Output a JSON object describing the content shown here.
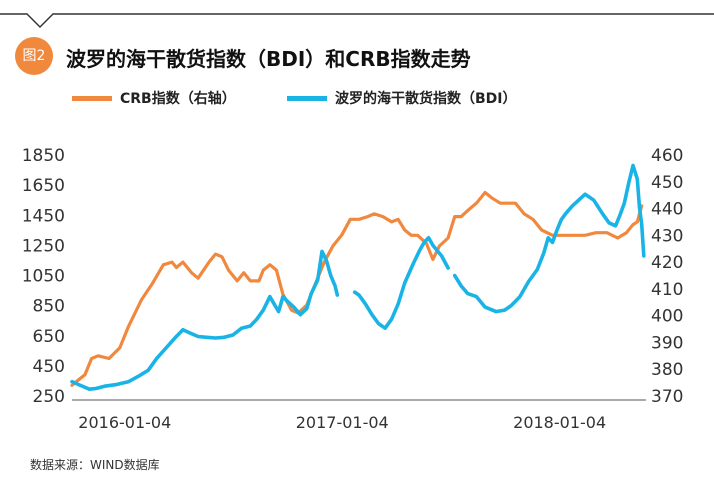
{
  "header": {
    "badge": "图2",
    "title": "波罗的海干散货指数（BDI）和CRB指数走势"
  },
  "colors": {
    "crb": "#f0883e",
    "bdi": "#19b3e6",
    "badge": "#f0883e"
  },
  "chart_data": {
    "type": "line",
    "title": "波罗的海干散货指数（BDI）和CRB指数走势",
    "legend": "top-left",
    "grid": false,
    "x_ticks": [
      "2016-01-04",
      "2017-01-04",
      "2018-01-04"
    ],
    "y_left": {
      "label": "BDI",
      "ylim": [
        250,
        1850
      ],
      "ticks": [
        "1850",
        "1650",
        "1450",
        "1250",
        "1050",
        "850",
        "650",
        "450",
        "250"
      ]
    },
    "y_right": {
      "label": "CRB",
      "ylim": [
        370,
        460
      ],
      "ticks": [
        "460",
        "450",
        "440",
        "430",
        "420",
        "410",
        "400",
        "390",
        "380",
        "370"
      ]
    },
    "series": [
      {
        "name": "CRB指数（右轴）",
        "axis": "right",
        "segments": [
          [
            [
              2016.0,
              374
            ],
            [
              2016.03,
              376
            ],
            [
              2016.06,
              378
            ],
            [
              2016.09,
              384
            ],
            [
              2016.12,
              385
            ],
            [
              2016.17,
              384
            ],
            [
              2016.22,
              388
            ],
            [
              2016.26,
              396
            ],
            [
              2016.32,
              406
            ],
            [
              2016.37,
              412
            ],
            [
              2016.42,
              419
            ],
            [
              2016.46,
              420
            ],
            [
              2016.48,
              418
            ],
            [
              2016.51,
              420
            ],
            [
              2016.55,
              416
            ],
            [
              2016.58,
              414
            ],
            [
              2016.63,
              420
            ],
            [
              2016.66,
              423
            ],
            [
              2016.69,
              422
            ],
            [
              2016.72,
              417
            ],
            [
              2016.76,
              413
            ],
            [
              2016.79,
              416
            ],
            [
              2016.82,
              413
            ],
            [
              2016.86,
              413
            ],
            [
              2016.88,
              417
            ],
            [
              2016.91,
              419
            ],
            [
              2016.94,
              417
            ],
            [
              2016.97,
              408
            ],
            [
              2017.01,
              402
            ],
            [
              2017.04,
              401
            ],
            [
              2017.08,
              404
            ],
            [
              2017.12,
              412
            ],
            [
              2017.16,
              420
            ],
            [
              2017.2,
              426
            ],
            [
              2017.24,
              430
            ],
            [
              2017.28,
              436
            ],
            [
              2017.32,
              436
            ],
            [
              2017.36,
              437
            ],
            [
              2017.39,
              438
            ],
            [
              2017.43,
              437
            ],
            [
              2017.47,
              435
            ],
            [
              2017.5,
              436
            ],
            [
              2017.53,
              432
            ],
            [
              2017.56,
              430
            ],
            [
              2017.59,
              430
            ],
            [
              2017.63,
              427
            ],
            [
              2017.66,
              421
            ],
            [
              2017.69,
              426
            ],
            [
              2017.73,
              429
            ],
            [
              2017.76,
              437
            ],
            [
              2017.79,
              437
            ],
            [
              2017.83,
              440
            ],
            [
              2017.86,
              442
            ],
            [
              2017.9,
              446
            ],
            [
              2017.93,
              444
            ],
            [
              2017.97,
              442
            ],
            [
              2018.0,
              442
            ],
            [
              2018.04,
              442
            ],
            [
              2018.08,
              438
            ],
            [
              2018.12,
              436
            ],
            [
              2018.16,
              432
            ],
            [
              2018.21,
              430
            ],
            [
              2018.26,
              430
            ],
            [
              2018.31,
              430
            ],
            [
              2018.36,
              430
            ],
            [
              2018.41,
              431
            ],
            [
              2018.46,
              431
            ],
            [
              2018.51,
              429
            ],
            [
              2018.55,
              431
            ],
            [
              2018.58,
              434
            ],
            [
              2018.6,
              435
            ],
            [
              2018.62,
              441
            ]
          ]
        ]
      },
      {
        "name": "波罗的海干散货指数（BDI）",
        "axis": "left",
        "segments": [
          [
            [
              2016.0,
              345
            ],
            [
              2016.04,
              320
            ],
            [
              2016.08,
              295
            ],
            [
              2016.11,
              300
            ],
            [
              2016.15,
              315
            ],
            [
              2016.2,
              325
            ],
            [
              2016.26,
              345
            ],
            [
              2016.31,
              385
            ],
            [
              2016.35,
              420
            ],
            [
              2016.39,
              500
            ],
            [
              2016.43,
              565
            ],
            [
              2016.47,
              630
            ],
            [
              2016.51,
              690
            ],
            [
              2016.54,
              670
            ],
            [
              2016.58,
              645
            ],
            [
              2016.62,
              640
            ],
            [
              2016.66,
              635
            ],
            [
              2016.7,
              640
            ],
            [
              2016.74,
              655
            ],
            [
              2016.78,
              700
            ],
            [
              2016.82,
              715
            ],
            [
              2016.85,
              760
            ],
            [
              2016.88,
              820
            ],
            [
              2016.91,
              910
            ],
            [
              2016.93,
              860
            ],
            [
              2016.95,
              810
            ],
            [
              2016.97,
              910
            ],
            [
              2016.99,
              880
            ],
            [
              2017.02,
              840
            ],
            [
              2017.05,
              790
            ],
            [
              2017.08,
              830
            ],
            [
              2017.1,
              930
            ],
            [
              2017.13,
              1020
            ],
            [
              2017.15,
              1210
            ],
            [
              2017.17,
              1150
            ],
            [
              2017.19,
              1050
            ],
            [
              2017.21,
              980
            ],
            [
              2017.22,
              920
            ]
          ],
          [
            [
              2017.3,
              940
            ],
            [
              2017.32,
              920
            ],
            [
              2017.35,
              860
            ],
            [
              2017.38,
              790
            ],
            [
              2017.41,
              730
            ],
            [
              2017.44,
              700
            ],
            [
              2017.47,
              760
            ],
            [
              2017.5,
              860
            ],
            [
              2017.53,
              1000
            ],
            [
              2017.57,
              1130
            ],
            [
              2017.6,
              1220
            ],
            [
              2017.62,
              1270
            ],
            [
              2017.64,
              1300
            ],
            [
              2017.66,
              1250
            ],
            [
              2017.7,
              1180
            ],
            [
              2017.73,
              1100
            ]
          ],
          [
            [
              2017.76,
              1050
            ],
            [
              2017.79,
              980
            ],
            [
              2017.82,
              930
            ],
            [
              2017.86,
              910
            ],
            [
              2017.9,
              840
            ],
            [
              2017.95,
              810
            ],
            [
              2017.99,
              820
            ],
            [
              2018.02,
              850
            ],
            [
              2018.06,
              910
            ],
            [
              2018.1,
              1010
            ],
            [
              2018.14,
              1090
            ],
            [
              2018.17,
              1200
            ],
            [
              2018.19,
              1300
            ],
            [
              2018.21,
              1270
            ],
            [
              2018.23,
              1350
            ],
            [
              2018.25,
              1420
            ],
            [
              2018.27,
              1460
            ],
            [
              2018.3,
              1510
            ],
            [
              2018.33,
              1550
            ],
            [
              2018.36,
              1590
            ],
            [
              2018.4,
              1550
            ],
            [
              2018.44,
              1460
            ],
            [
              2018.47,
              1400
            ],
            [
              2018.5,
              1380
            ],
            [
              2018.52,
              1450
            ],
            [
              2018.54,
              1530
            ],
            [
              2018.56,
              1660
            ],
            [
              2018.58,
              1780
            ],
            [
              2018.6,
              1690
            ],
            [
              2018.61,
              1500
            ],
            [
              2018.62,
              1390
            ],
            [
              2018.63,
              1180
            ]
          ]
        ]
      }
    ]
  },
  "footer": {
    "source": "数据来源：WIND数据库"
  }
}
